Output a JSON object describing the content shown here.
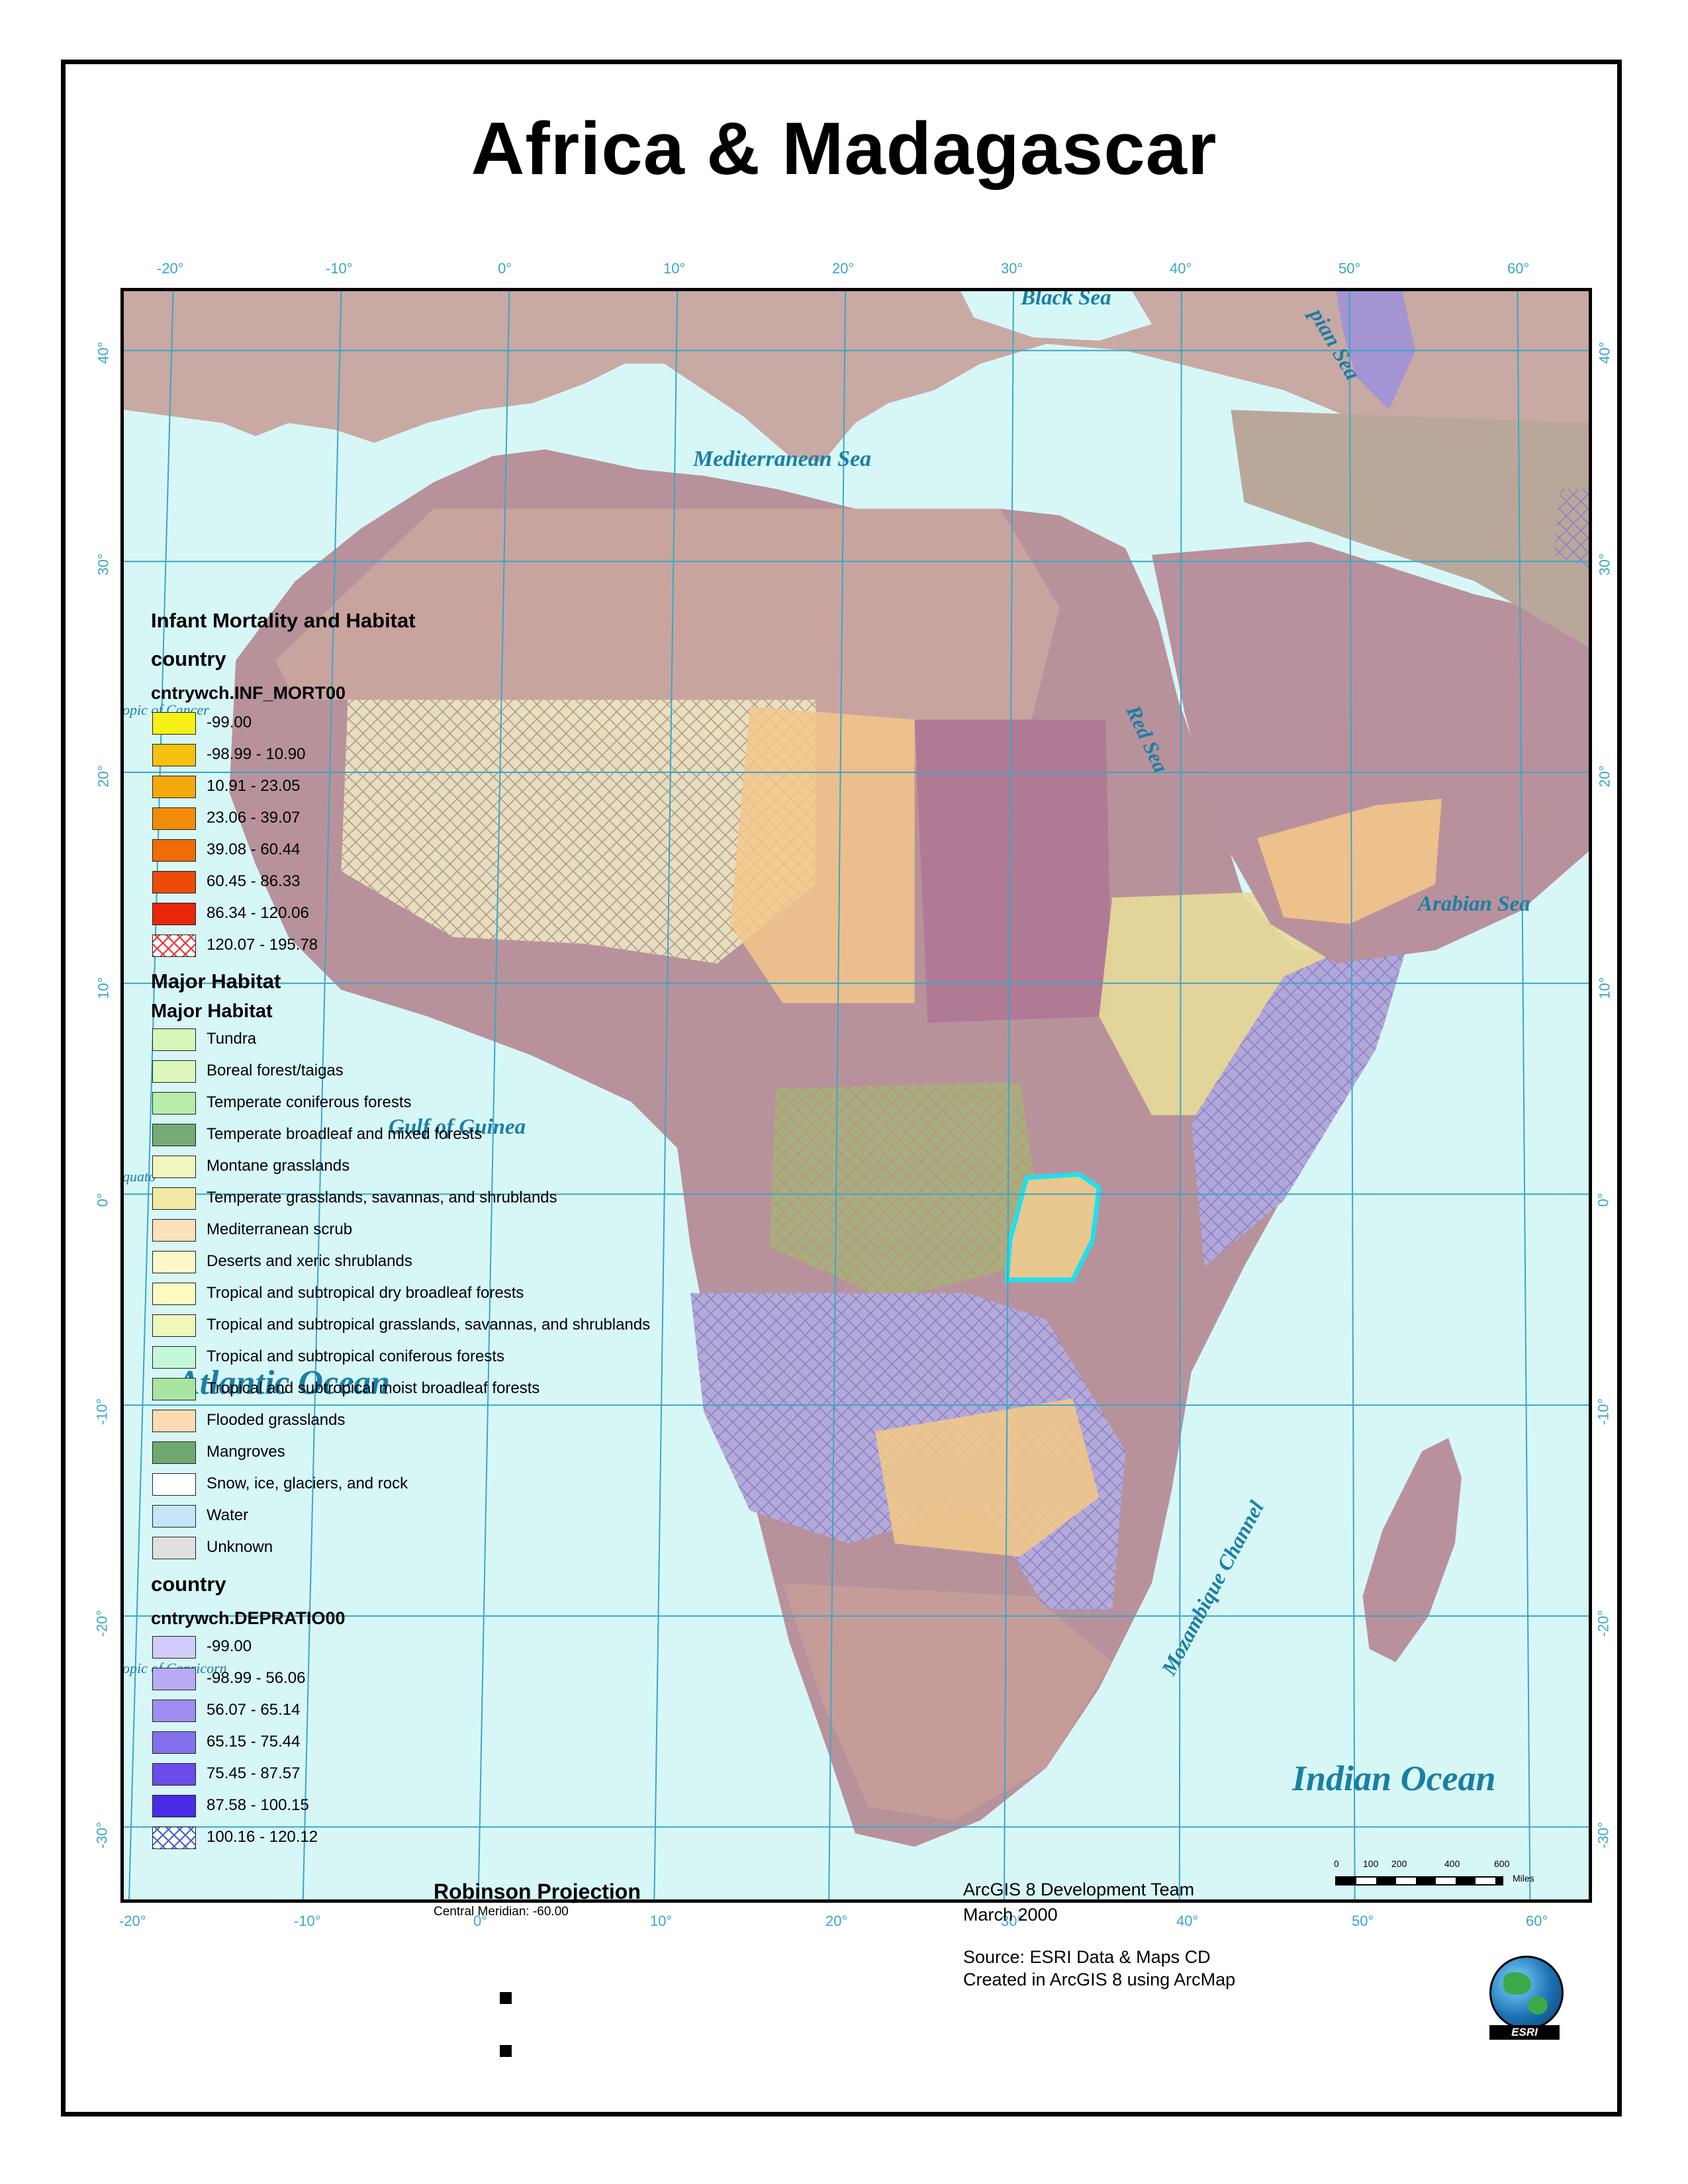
{
  "title": "Africa & Madagascar",
  "graticule": {
    "top_lon": [
      "-20°",
      "-10°",
      "0°",
      "10°",
      "20°",
      "30°",
      "40°",
      "50°",
      "60°"
    ],
    "bottom_lon": [
      "-20°",
      "-10°",
      "0°",
      "10°",
      "20°",
      "30°",
      "40°",
      "50°",
      "60°"
    ],
    "lat": [
      "40°",
      "30°",
      "20°",
      "10°",
      "0°",
      "-10°",
      "-20°",
      "-30°"
    ]
  },
  "water_labels": {
    "black_sea": "Black Sea",
    "caspian_sea": "pian Sea",
    "mediterranean": "Mediterranean Sea",
    "red_sea": "Red Sea",
    "arabian_sea": "Arabian Sea",
    "gulf_of_guinea": "Gulf of Guinea",
    "atlantic": "Atlantic Ocean",
    "mozambique": "Mozambique Channel",
    "indian": "Indian Ocean",
    "tropic_cancer": "opic of Cancer",
    "tropic_capricorn": "opic of Capricorn",
    "equator": "quato"
  },
  "legend": {
    "title": "Infant Mortality and Habitat",
    "group1": "country",
    "field1": "cntrywch.INF_MORT00",
    "inf_mort": [
      {
        "label": "-99.00",
        "color": "#f5f016"
      },
      {
        "label": "-98.99 - 10.90",
        "color": "#f4c10f"
      },
      {
        "label": "10.91 - 23.05",
        "color": "#f3a80d"
      },
      {
        "label": "23.06 - 39.07",
        "color": "#f18c0b"
      },
      {
        "label": "39.08 - 60.44",
        "color": "#ee6c0a"
      },
      {
        "label": "60.45 - 86.33",
        "color": "#ec4b09"
      },
      {
        "label": "86.34 - 120.06",
        "color": "#ea2508"
      },
      {
        "label": "120.07 - 195.78",
        "color": "#ffffff"
      }
    ],
    "group2": "Major Habitat",
    "field2": "Major Habitat",
    "habitats": [
      {
        "label": "Tundra",
        "color": "#d6f7b8"
      },
      {
        "label": "Boreal forest/taigas",
        "color": "#dcf7b9"
      },
      {
        "label": "Temperate coniferous forests",
        "color": "#b7ecaa"
      },
      {
        "label": "Temperate broadleaf and mixed forests",
        "color": "#74ab76"
      },
      {
        "label": "Montane grasslands",
        "color": "#eff7bf"
      },
      {
        "label": "Temperate grasslands, savannas, and shrublands",
        "color": "#f1e9a4"
      },
      {
        "label": "Mediterranean scrub",
        "color": "#fbe0b9"
      },
      {
        "label": "Deserts and xeric shrublands",
        "color": "#fbf7c8"
      },
      {
        "label": "Tropical and subtropical dry broadleaf forests",
        "color": "#fcf9c2"
      },
      {
        "label": "Tropical and subtropical grasslands, savannas, and shrublands",
        "color": "#eff7bb"
      },
      {
        "label": "Tropical and subtropical coniferous forests",
        "color": "#c4f7d8"
      },
      {
        "label": "Tropical and subtropical moist broadleaf forests",
        "color": "#a8e5a0"
      },
      {
        "label": "Flooded grasslands",
        "color": "#fbdcb2"
      },
      {
        "label": "Mangroves",
        "color": "#70a96f"
      },
      {
        "label": "Snow, ice, glaciers, and rock",
        "color": "#ffffff"
      },
      {
        "label": "Water",
        "color": "#c4e6f8"
      },
      {
        "label": "Unknown",
        "color": "#e0e0e0"
      }
    ],
    "group3": "country",
    "field3": "cntrywch.DEPRATIO00",
    "dep_ratio": [
      {
        "label": "-99.00",
        "color": "#d3ccfb"
      },
      {
        "label": "-98.99 - 56.06",
        "color": "#b8acf5"
      },
      {
        "label": "56.07 - 65.14",
        "color": "#9e8ef1"
      },
      {
        "label": "65.15 - 75.44",
        "color": "#8470ed"
      },
      {
        "label": "75.45 - 87.57",
        "color": "#6a4ce9"
      },
      {
        "label": "87.58 - 100.15",
        "color": "#4a2be5"
      },
      {
        "label": "100.16 - 120.12",
        "color": "#ffffff"
      }
    ]
  },
  "footer": {
    "projection": "Robinson Projection",
    "meridian": "Central Meridian: -60.00",
    "team": "ArcGIS 8 Development Team",
    "date": "March 2000",
    "source": "Source: ESRI Data & Maps CD",
    "created": "Created in ArcGIS 8 using ArcMap",
    "esri": "ESRI",
    "scale_ticks": [
      "0",
      "100",
      "200",
      "400",
      "600"
    ],
    "scale_unit": "Miles"
  }
}
